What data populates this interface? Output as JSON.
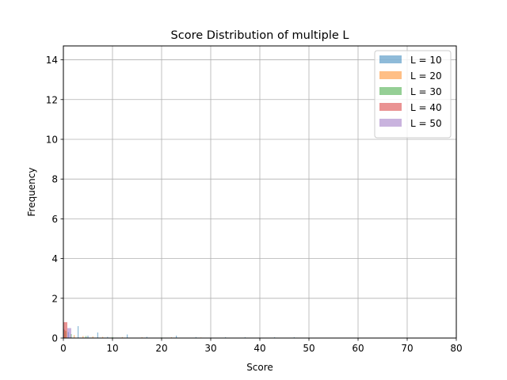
{
  "chart_data": {
    "type": "bar",
    "title": "Score Distribution of multiple L",
    "xlabel": "Score",
    "ylabel": "Frequency",
    "xlim": [
      0,
      80
    ],
    "ylim": [
      0,
      14.7
    ],
    "xticks": [
      0,
      10,
      20,
      30,
      40,
      50,
      60,
      70,
      80
    ],
    "yticks": [
      0,
      2,
      4,
      6,
      8,
      10,
      12,
      14
    ],
    "grid": true,
    "legend_position": "top-right",
    "series": [
      {
        "name": "L = 10",
        "color": "#1f77b4",
        "alpha": 0.5,
        "bin_width": 0.2,
        "bins": [
          {
            "x": 0.1,
            "y": 0.45
          },
          {
            "x": 1.0,
            "y": 0.3
          },
          {
            "x": 3.0,
            "y": 0.6
          },
          {
            "x": 5.0,
            "y": 0.12
          },
          {
            "x": 7.0,
            "y": 0.28
          },
          {
            "x": 9.0,
            "y": 0.06
          },
          {
            "x": 13.0,
            "y": 0.18
          },
          {
            "x": 17.0,
            "y": 0.06
          },
          {
            "x": 23.0,
            "y": 0.12
          },
          {
            "x": 27.0,
            "y": 0.05
          },
          {
            "x": 33.0,
            "y": 0.04
          },
          {
            "x": 37.0,
            "y": 0.04
          },
          {
            "x": 43.0,
            "y": 0.04
          },
          {
            "x": 47.0,
            "y": 0.04
          }
        ]
      },
      {
        "name": "L = 20",
        "color": "#ff7f0e",
        "alpha": 0.5,
        "bin_width": 0.2,
        "bins": [
          {
            "x": 0.3,
            "y": 0.4
          },
          {
            "x": 2.2,
            "y": 0.15
          },
          {
            "x": 4.0,
            "y": 0.1
          },
          {
            "x": 6.0,
            "y": 0.08
          },
          {
            "x": 8.0,
            "y": 0.06
          },
          {
            "x": 12.0,
            "y": 0.05
          },
          {
            "x": 16.0,
            "y": 0.04
          },
          {
            "x": 22.0,
            "y": 0.04
          },
          {
            "x": 28.0,
            "y": 0.03
          }
        ]
      },
      {
        "name": "L = 30",
        "color": "#2ca02c",
        "alpha": 0.5,
        "bin_width": 0.2,
        "bins": [
          {
            "x": 0.5,
            "y": 0.35
          },
          {
            "x": 1.6,
            "y": 0.2
          },
          {
            "x": 4.6,
            "y": 0.1
          },
          {
            "x": 10.0,
            "y": 0.05
          },
          {
            "x": 20.0,
            "y": 0.03
          }
        ]
      },
      {
        "name": "L = 40",
        "color": "#d62728",
        "alpha": 0.5,
        "bin_width": 0.8,
        "bins": [
          {
            "x": 0.4,
            "y": 0.8
          }
        ]
      },
      {
        "name": "L = 50",
        "color": "#9467bd",
        "alpha": 0.5,
        "bin_width": 0.8,
        "bins": [
          {
            "x": 1.2,
            "y": 0.5
          }
        ]
      }
    ]
  }
}
